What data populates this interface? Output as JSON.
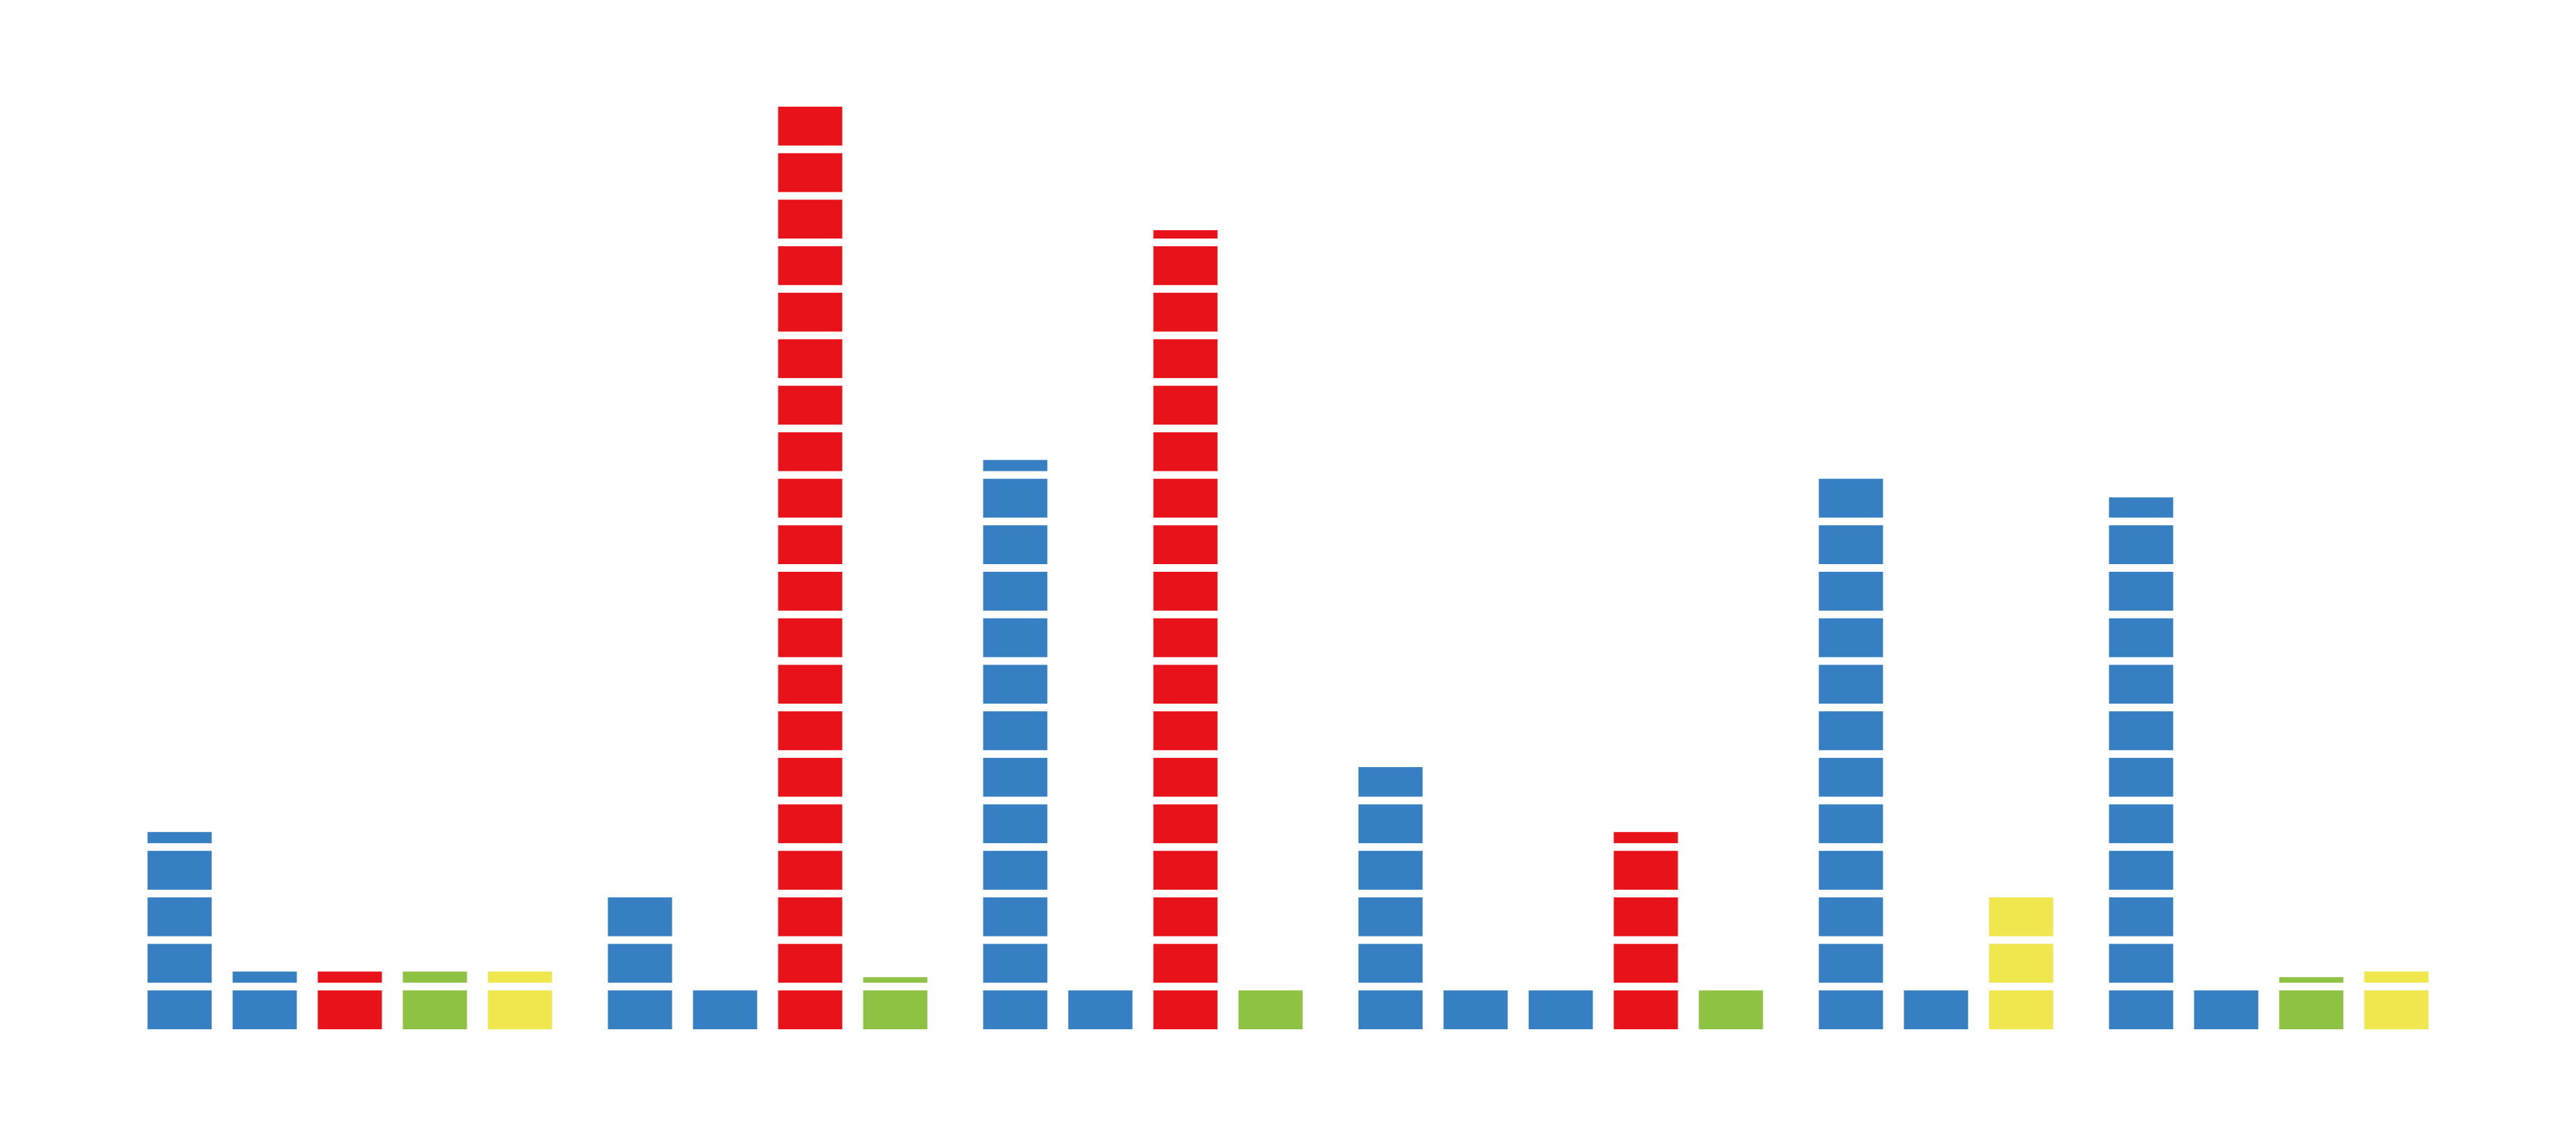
{
  "chart_data": {
    "type": "bar",
    "title": "",
    "xlabel": "",
    "ylabel": "",
    "unit_value": 1,
    "grid": false,
    "legend": "none",
    "colors": {
      "blue": "#357FC2",
      "red": "#E8131A",
      "green": "#8DC243",
      "yellow": "#F0E64E"
    },
    "groups": [
      {
        "bars": [
          {
            "color": "blue",
            "value": 4.4
          },
          {
            "color": "blue",
            "value": 1.4
          },
          {
            "color": "red",
            "value": 1.4
          },
          {
            "color": "green",
            "value": 1.4
          },
          {
            "color": "yellow",
            "value": 1.4
          }
        ]
      },
      {
        "bars": [
          {
            "color": "blue",
            "value": 3.0
          },
          {
            "color": "blue",
            "value": 1.0
          },
          {
            "color": "red",
            "value": 20.0
          },
          {
            "color": "green",
            "value": 1.2
          }
        ]
      },
      {
        "bars": [
          {
            "color": "blue",
            "value": 12.4
          },
          {
            "color": "blue",
            "value": 1.0
          },
          {
            "color": "red",
            "value": 17.3
          },
          {
            "color": "green",
            "value": 1.0
          }
        ]
      },
      {
        "bars": [
          {
            "color": "blue",
            "value": 5.8
          },
          {
            "color": "blue",
            "value": 1.0
          },
          {
            "color": "blue",
            "value": 1.0
          },
          {
            "color": "red",
            "value": 4.4
          },
          {
            "color": "green",
            "value": 1.0
          }
        ]
      },
      {
        "bars": [
          {
            "color": "blue",
            "value": 12.0
          },
          {
            "color": "blue",
            "value": 1.0
          },
          {
            "color": "yellow",
            "value": 3.0
          }
        ]
      },
      {
        "bars": [
          {
            "color": "blue",
            "value": 11.6
          },
          {
            "color": "blue",
            "value": 1.0
          },
          {
            "color": "green",
            "value": 1.2
          },
          {
            "color": "yellow",
            "value": 1.4
          }
        ]
      }
    ]
  }
}
